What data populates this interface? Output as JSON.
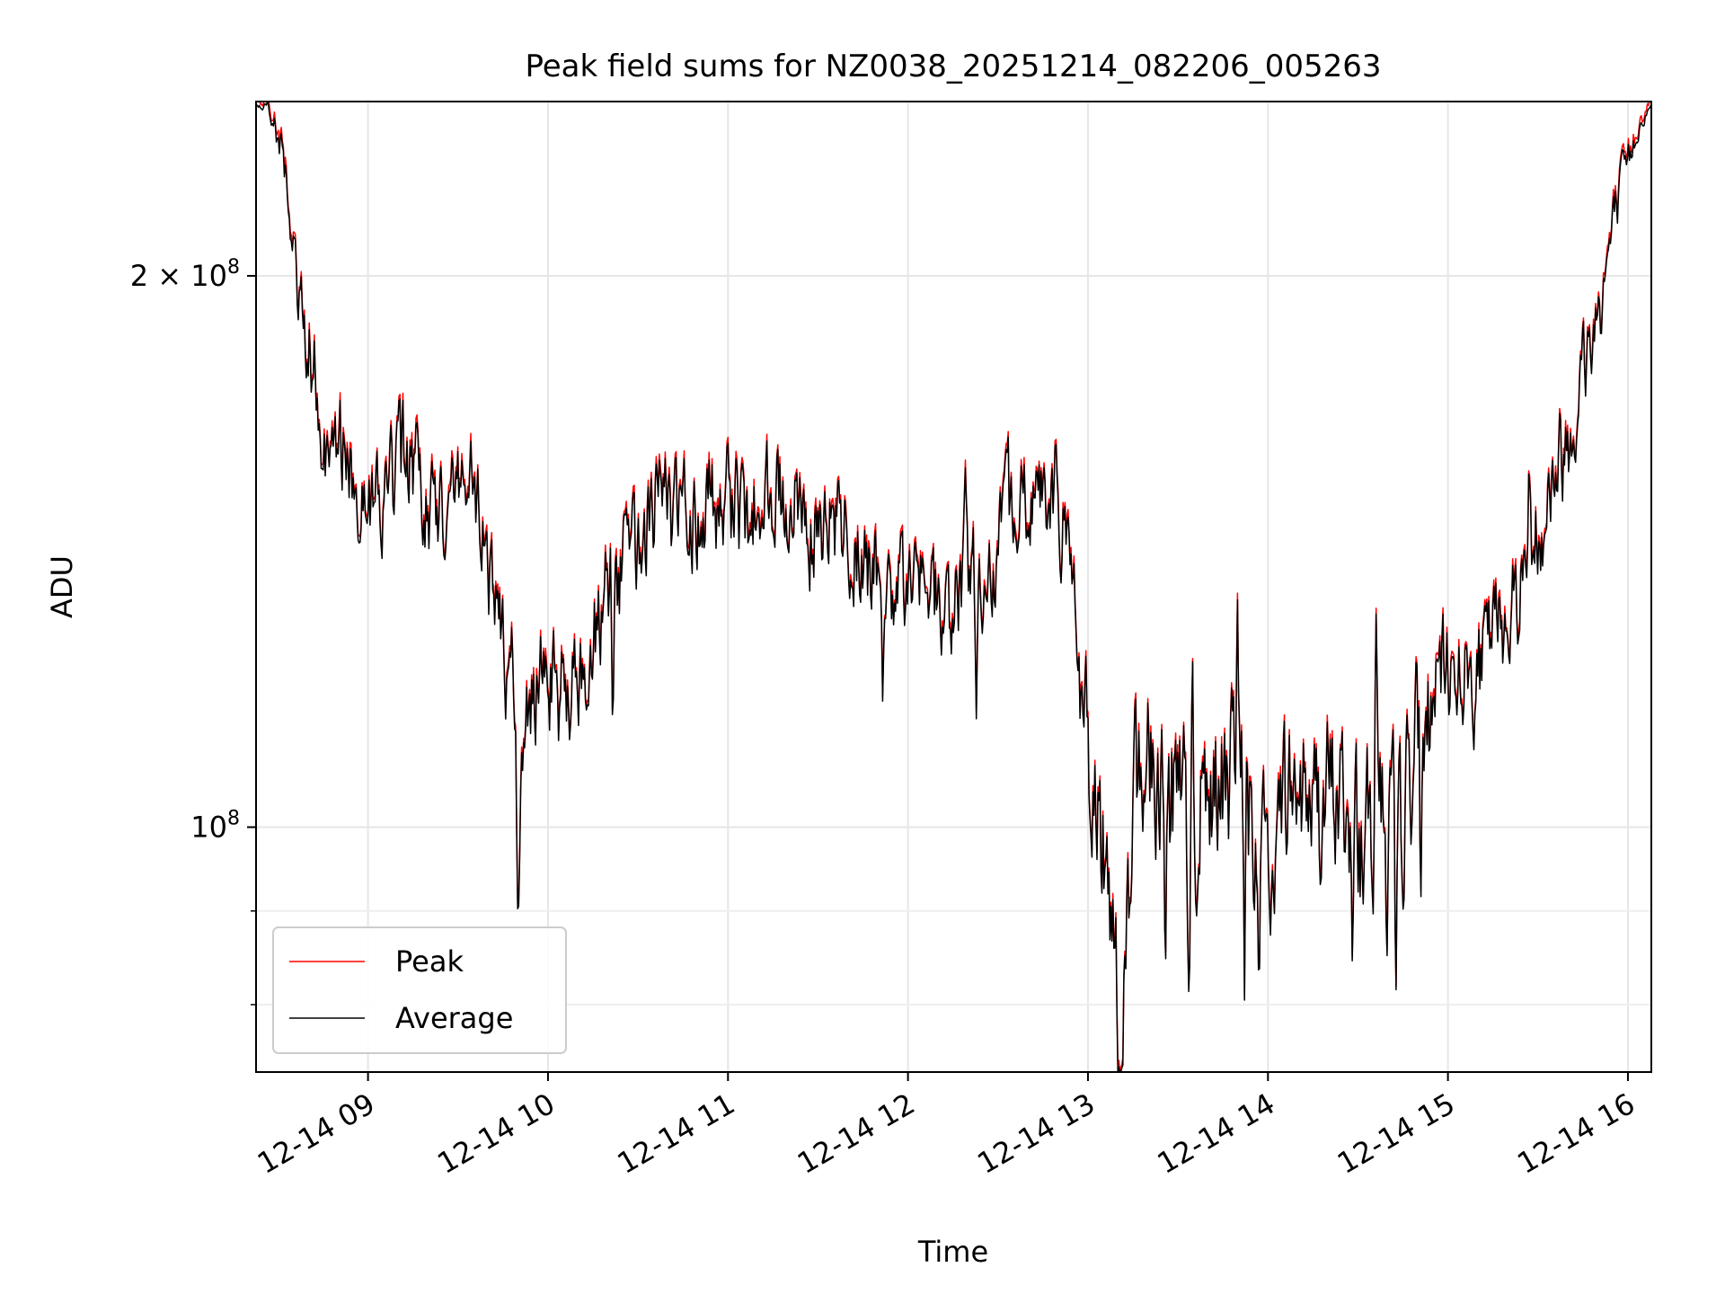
{
  "chart_data": {
    "type": "line",
    "title": "Peak field sums for NZ0038_20251214_082206_005263",
    "xlabel": "Time",
    "ylabel": "ADU",
    "yscale": "log",
    "grid": true,
    "legend_position": "lower-left",
    "x_unit": "hours since 2025-12-14 00:00",
    "xlim": [
      8.378,
      16.13
    ],
    "ylim": [
      73500000,
      249000000
    ],
    "x_ticks": [
      {
        "value": 9,
        "label": "12-14 09"
      },
      {
        "value": 10,
        "label": "12-14 10"
      },
      {
        "value": 11,
        "label": "12-14 11"
      },
      {
        "value": 12,
        "label": "12-14 12"
      },
      {
        "value": 13,
        "label": "12-14 13"
      },
      {
        "value": 14,
        "label": "12-14 14"
      },
      {
        "value": 15,
        "label": "12-14 15"
      },
      {
        "value": 16,
        "label": "12-14 16"
      }
    ],
    "y_major_ticks": [
      {
        "value": 100000000,
        "base": "10",
        "exp": "8",
        "mantissa": ""
      },
      {
        "value": 200000000,
        "base": "10",
        "exp": "8",
        "mantissa": "2"
      }
    ],
    "y_minor_ticks": [
      80000000,
      90000000
    ],
    "y_tick_times_sign": "×",
    "series": [
      {
        "name": "Peak",
        "color": "#ff0000",
        "x": [],
        "y": []
      },
      {
        "name": "Average",
        "color": "#000000",
        "x": [],
        "y": []
      }
    ],
    "trend_points": [
      [
        8.38,
        248000000
      ],
      [
        8.47,
        245000000
      ],
      [
        8.55,
        225000000
      ],
      [
        8.6,
        198000000
      ],
      [
        8.65,
        188000000
      ],
      [
        8.72,
        175000000
      ],
      [
        8.8,
        158000000
      ],
      [
        8.9,
        160000000
      ],
      [
        9.0,
        150000000
      ],
      [
        9.1,
        152000000
      ],
      [
        9.2,
        158000000
      ],
      [
        9.3,
        153000000
      ],
      [
        9.4,
        150000000
      ],
      [
        9.5,
        156000000
      ],
      [
        9.6,
        150000000
      ],
      [
        9.65,
        140000000
      ],
      [
        9.75,
        130000000
      ],
      [
        9.8,
        113000000
      ],
      [
        9.83,
        99000000
      ],
      [
        9.87,
        113000000
      ],
      [
        9.95,
        121000000
      ],
      [
        10.05,
        120000000
      ],
      [
        10.15,
        120000000
      ],
      [
        10.25,
        128000000
      ],
      [
        10.35,
        135000000
      ],
      [
        10.45,
        140000000
      ],
      [
        10.55,
        147000000
      ],
      [
        10.65,
        150000000
      ],
      [
        10.75,
        146000000
      ],
      [
        10.85,
        150000000
      ],
      [
        10.95,
        151000000
      ],
      [
        11.05,
        148000000
      ],
      [
        11.15,
        149000000
      ],
      [
        11.25,
        151000000
      ],
      [
        11.35,
        148000000
      ],
      [
        11.45,
        146000000
      ],
      [
        11.55,
        148000000
      ],
      [
        11.65,
        146000000
      ],
      [
        11.75,
        138000000
      ],
      [
        11.85,
        136000000
      ],
      [
        11.95,
        136000000
      ],
      [
        12.05,
        137000000
      ],
      [
        12.15,
        132000000
      ],
      [
        12.25,
        131000000
      ],
      [
        12.35,
        138000000
      ],
      [
        12.45,
        133000000
      ],
      [
        12.55,
        148000000
      ],
      [
        12.65,
        150000000
      ],
      [
        12.75,
        148000000
      ],
      [
        12.85,
        148000000
      ],
      [
        12.92,
        140000000
      ],
      [
        12.95,
        112000000
      ],
      [
        13.0,
        110000000
      ],
      [
        13.05,
        100000000
      ],
      [
        13.12,
        93000000
      ],
      [
        13.18,
        78000000
      ],
      [
        13.25,
        104000000
      ],
      [
        13.35,
        106000000
      ],
      [
        13.45,
        104000000
      ],
      [
        13.55,
        100000000
      ],
      [
        13.65,
        104000000
      ],
      [
        13.75,
        108000000
      ],
      [
        13.85,
        104000000
      ],
      [
        13.95,
        95000000
      ],
      [
        14.05,
        103000000
      ],
      [
        14.15,
        105000000
      ],
      [
        14.25,
        102000000
      ],
      [
        14.35,
        104000000
      ],
      [
        14.45,
        102000000
      ],
      [
        14.55,
        98000000
      ],
      [
        14.65,
        108000000
      ],
      [
        14.72,
        96000000
      ],
      [
        14.8,
        110000000
      ],
      [
        14.87,
        112000000
      ],
      [
        14.95,
        120000000
      ],
      [
        15.05,
        123000000
      ],
      [
        15.15,
        120000000
      ],
      [
        15.25,
        127000000
      ],
      [
        15.35,
        132000000
      ],
      [
        15.45,
        140000000
      ],
      [
        15.55,
        152000000
      ],
      [
        15.65,
        162000000
      ],
      [
        15.75,
        177000000
      ],
      [
        15.85,
        195000000
      ],
      [
        15.95,
        220000000
      ],
      [
        16.05,
        240000000
      ],
      [
        16.13,
        248000000
      ]
    ],
    "spikes": [
      {
        "x": 9.835,
        "y": 88000000
      },
      {
        "x": 13.19,
        "y": 73500000
      },
      {
        "x": 13.43,
        "y": 82000000
      },
      {
        "x": 13.56,
        "y": 81000000
      },
      {
        "x": 13.87,
        "y": 80000000
      },
      {
        "x": 13.95,
        "y": 78500000
      },
      {
        "x": 14.47,
        "y": 81000000
      },
      {
        "x": 14.66,
        "y": 79000000
      },
      {
        "x": 14.71,
        "y": 77000000
      },
      {
        "x": 10.06,
        "y": 109000000
      },
      {
        "x": 10.36,
        "y": 110000000
      },
      {
        "x": 11.86,
        "y": 115000000
      },
      {
        "x": 12.38,
        "y": 114000000
      },
      {
        "x": 14.85,
        "y": 91000000
      }
    ],
    "peaks": [
      {
        "x": 9.27,
        "y": 162000000
      },
      {
        "x": 9.8,
        "y": 130000000
      },
      {
        "x": 10.32,
        "y": 142000000
      },
      {
        "x": 10.6,
        "y": 160000000
      },
      {
        "x": 11.0,
        "y": 162000000
      },
      {
        "x": 11.38,
        "y": 158000000
      },
      {
        "x": 12.32,
        "y": 158000000
      },
      {
        "x": 12.82,
        "y": 163000000
      },
      {
        "x": 13.58,
        "y": 128000000
      },
      {
        "x": 13.83,
        "y": 136000000
      },
      {
        "x": 14.6,
        "y": 134000000
      },
      {
        "x": 15.45,
        "y": 158000000
      }
    ]
  }
}
